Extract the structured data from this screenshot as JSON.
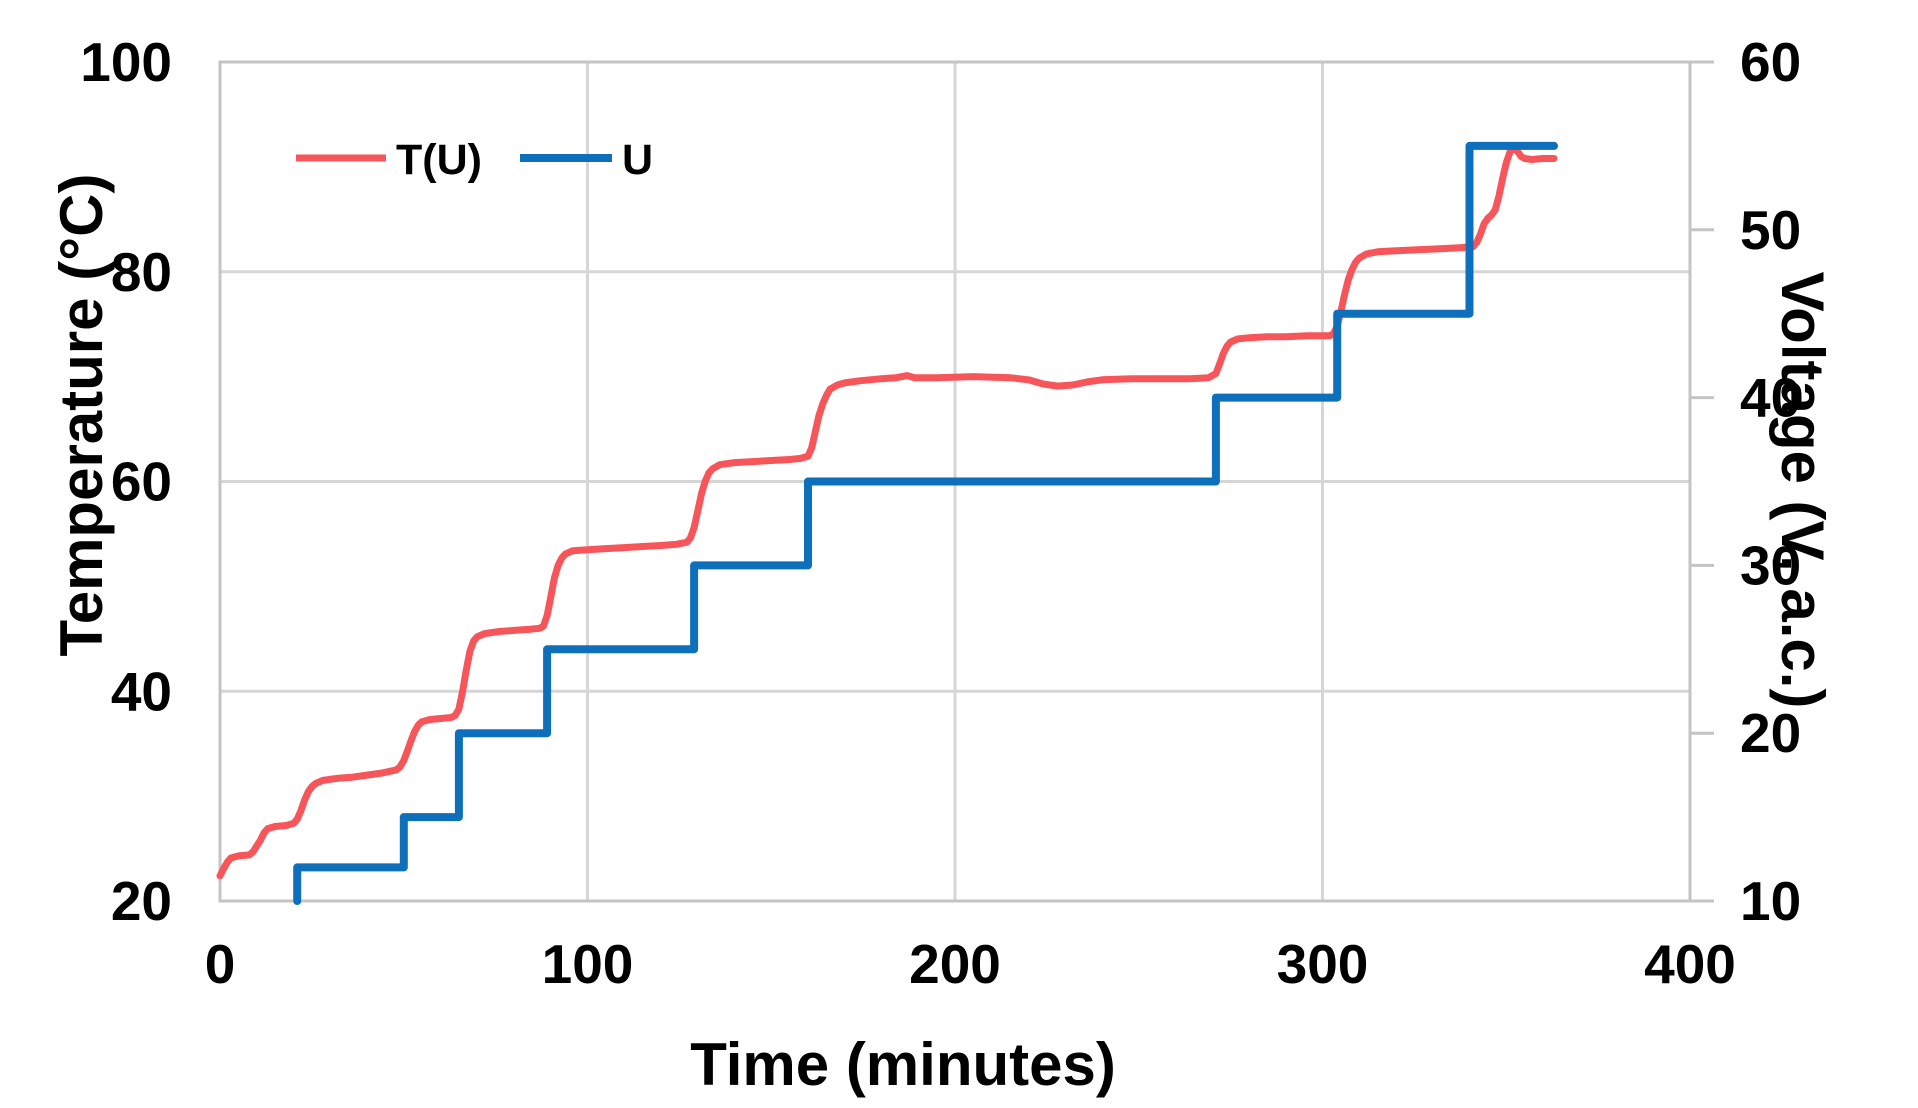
{
  "chart_data": {
    "type": "line",
    "title": "",
    "xlabel": "Time (minutes)",
    "ylabel_left": "Temperature (°C)",
    "ylabel_right": "Voltage (V, a.c.)",
    "xlim": [
      0,
      400
    ],
    "ylim_left": [
      20,
      100
    ],
    "ylim_right": [
      10,
      60
    ],
    "x_ticks": [
      0,
      100,
      200,
      300,
      400
    ],
    "y_left_ticks": [
      20,
      40,
      60,
      80,
      100
    ],
    "y_right_ticks": [
      10,
      20,
      30,
      40,
      50,
      60
    ],
    "grid": true,
    "legend_position": "top-left-inside",
    "colors": {
      "temperature_series": "#f6555a",
      "voltage_series": "#0e6fba",
      "gridline": "#d6d6d6",
      "frame": "#c4c4c4",
      "text": "#000000"
    },
    "legend": [
      {
        "label": "T(U)",
        "color": "#f6555a"
      },
      {
        "label": "U",
        "color": "#0e6fba"
      }
    ],
    "series": [
      {
        "name": "T(U)",
        "axis": "left",
        "units": "°C",
        "color": "#f6555a",
        "points": [
          [
            0,
            22.4
          ],
          [
            1,
            23.1
          ],
          [
            2,
            23.7
          ],
          [
            3,
            24.1
          ],
          [
            5,
            24.3
          ],
          [
            8,
            24.4
          ],
          [
            9,
            24.7
          ],
          [
            11,
            25.8
          ],
          [
            12,
            26.5
          ],
          [
            13,
            26.9
          ],
          [
            15,
            27.1
          ],
          [
            18,
            27.2
          ],
          [
            20,
            27.4
          ],
          [
            21,
            27.8
          ],
          [
            22,
            28.6
          ],
          [
            23,
            29.6
          ],
          [
            24,
            30.4
          ],
          [
            25,
            30.9
          ],
          [
            26,
            31.2
          ],
          [
            28,
            31.5
          ],
          [
            32,
            31.7
          ],
          [
            36,
            31.8
          ],
          [
            40,
            32.0
          ],
          [
            44,
            32.2
          ],
          [
            48,
            32.5
          ],
          [
            49,
            32.8
          ],
          [
            50,
            33.4
          ],
          [
            51,
            34.3
          ],
          [
            52,
            35.3
          ],
          [
            53,
            36.2
          ],
          [
            54,
            36.8
          ],
          [
            55,
            37.1
          ],
          [
            57,
            37.3
          ],
          [
            60,
            37.4
          ],
          [
            63,
            37.5
          ],
          [
            64,
            37.7
          ],
          [
            65,
            38.3
          ],
          [
            66,
            40.0
          ],
          [
            67,
            42.0
          ],
          [
            68,
            43.8
          ],
          [
            69,
            44.8
          ],
          [
            70,
            45.2
          ],
          [
            72,
            45.5
          ],
          [
            76,
            45.7
          ],
          [
            80,
            45.8
          ],
          [
            84,
            45.9
          ],
          [
            87,
            46.0
          ],
          [
            88,
            46.2
          ],
          [
            89,
            47.2
          ],
          [
            90,
            49.0
          ],
          [
            91,
            50.8
          ],
          [
            92,
            52.0
          ],
          [
            93,
            52.7
          ],
          [
            94,
            53.1
          ],
          [
            96,
            53.4
          ],
          [
            100,
            53.5
          ],
          [
            105,
            53.6
          ],
          [
            110,
            53.7
          ],
          [
            115,
            53.8
          ],
          [
            120,
            53.9
          ],
          [
            124,
            54.0
          ],
          [
            127,
            54.2
          ],
          [
            128,
            54.6
          ],
          [
            129,
            55.6
          ],
          [
            130,
            57.2
          ],
          [
            131,
            58.8
          ],
          [
            132,
            60.0
          ],
          [
            133,
            60.8
          ],
          [
            134,
            61.2
          ],
          [
            136,
            61.6
          ],
          [
            140,
            61.8
          ],
          [
            145,
            61.9
          ],
          [
            150,
            62.0
          ],
          [
            155,
            62.1
          ],
          [
            158,
            62.2
          ],
          [
            160,
            62.4
          ],
          [
            161,
            63.2
          ],
          [
            162,
            64.8
          ],
          [
            163,
            66.3
          ],
          [
            164,
            67.4
          ],
          [
            165,
            68.2
          ],
          [
            166,
            68.8
          ],
          [
            168,
            69.2
          ],
          [
            170,
            69.4
          ],
          [
            174,
            69.6
          ],
          [
            180,
            69.8
          ],
          [
            184,
            69.9
          ],
          [
            187,
            70.1
          ],
          [
            189,
            69.9
          ],
          [
            195,
            69.9
          ],
          [
            205,
            70.0
          ],
          [
            215,
            69.9
          ],
          [
            220,
            69.7
          ],
          [
            224,
            69.3
          ],
          [
            228,
            69.1
          ],
          [
            232,
            69.2
          ],
          [
            236,
            69.5
          ],
          [
            240,
            69.7
          ],
          [
            248,
            69.8
          ],
          [
            256,
            69.8
          ],
          [
            264,
            69.8
          ],
          [
            269,
            69.9
          ],
          [
            271,
            70.3
          ],
          [
            272,
            71.2
          ],
          [
            273,
            72.2
          ],
          [
            274,
            72.9
          ],
          [
            275,
            73.3
          ],
          [
            277,
            73.6
          ],
          [
            280,
            73.7
          ],
          [
            285,
            73.8
          ],
          [
            290,
            73.8
          ],
          [
            296,
            73.9
          ],
          [
            302,
            73.9
          ],
          [
            303,
            74.1
          ],
          [
            304,
            74.8
          ],
          [
            305,
            76.2
          ],
          [
            306,
            77.8
          ],
          [
            307,
            79.2
          ],
          [
            308,
            80.2
          ],
          [
            309,
            80.9
          ],
          [
            310,
            81.3
          ],
          [
            312,
            81.7
          ],
          [
            315,
            81.9
          ],
          [
            320,
            82.0
          ],
          [
            326,
            82.1
          ],
          [
            332,
            82.2
          ],
          [
            338,
            82.3
          ],
          [
            341,
            82.4
          ],
          [
            342,
            82.8
          ],
          [
            343,
            83.6
          ],
          [
            344,
            84.6
          ],
          [
            345,
            85.1
          ],
          [
            346,
            85.4
          ],
          [
            347,
            85.9
          ],
          [
            348,
            87.2
          ],
          [
            349,
            88.9
          ],
          [
            350,
            90.4
          ],
          [
            351,
            91.4
          ],
          [
            352,
            91.8
          ],
          [
            353,
            91.5
          ],
          [
            354,
            91.0
          ],
          [
            355,
            90.8
          ],
          [
            357,
            90.7
          ],
          [
            360,
            90.8
          ],
          [
            363,
            90.8
          ]
        ]
      },
      {
        "name": "U",
        "axis": "right",
        "units": "V",
        "color": "#0e6fba",
        "points": [
          [
            21,
            10
          ],
          [
            21,
            12
          ],
          [
            50,
            12
          ],
          [
            50,
            15
          ],
          [
            65,
            15
          ],
          [
            65,
            20
          ],
          [
            89,
            20
          ],
          [
            89,
            25
          ],
          [
            129,
            25
          ],
          [
            129,
            30
          ],
          [
            160,
            30
          ],
          [
            160,
            35
          ],
          [
            271,
            35
          ],
          [
            271,
            40
          ],
          [
            304,
            40
          ],
          [
            304,
            45
          ],
          [
            340,
            45
          ],
          [
            340,
            55
          ],
          [
            363,
            55
          ]
        ]
      }
    ]
  }
}
